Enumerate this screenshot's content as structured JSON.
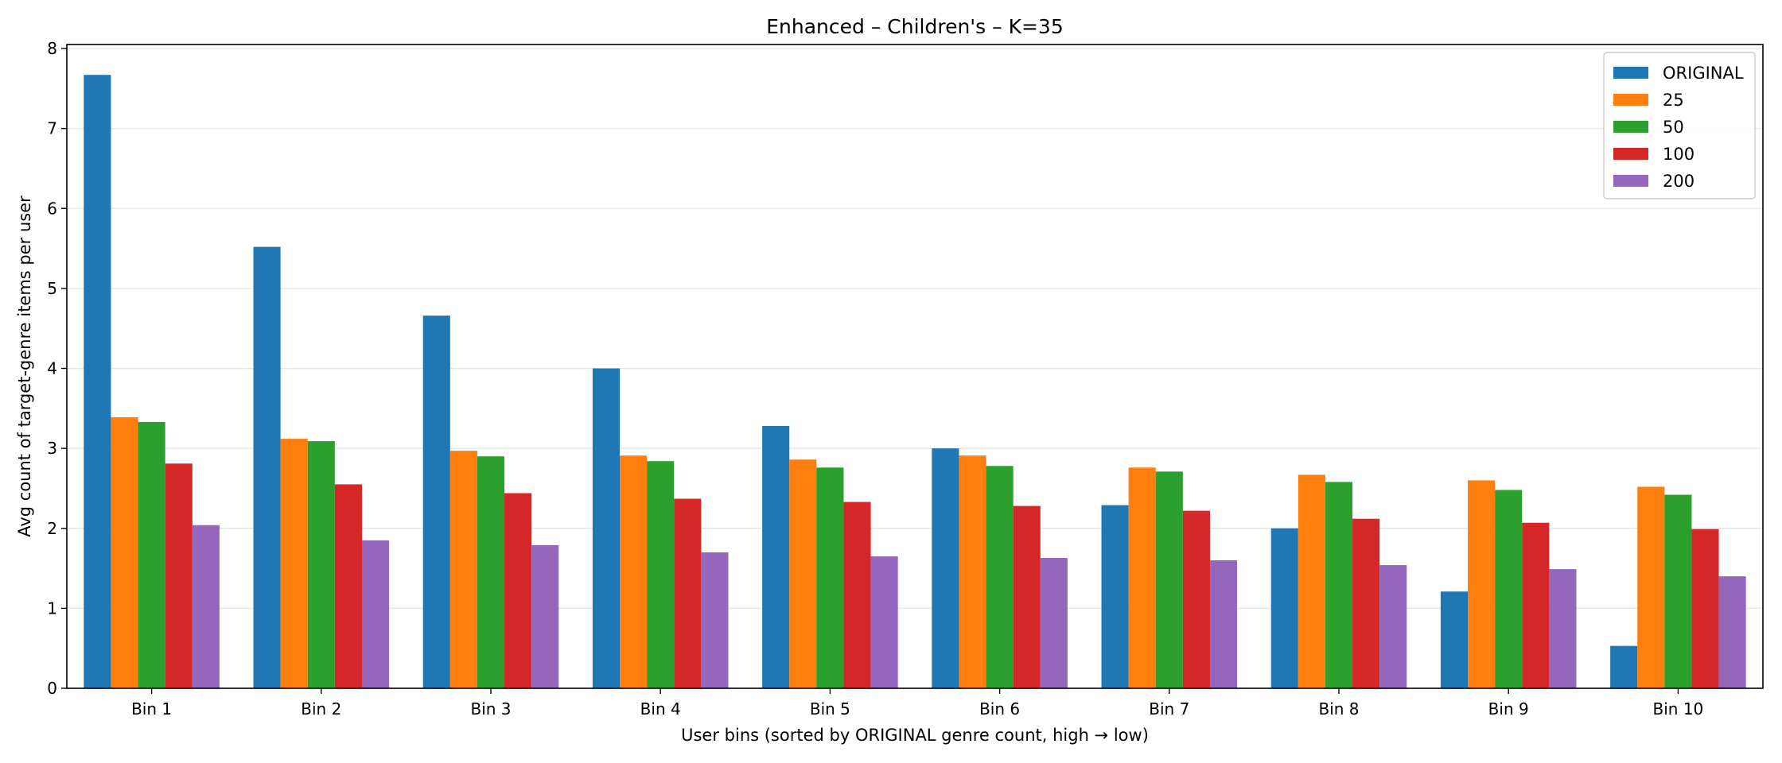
{
  "chart_data": {
    "type": "bar",
    "title": "Enhanced – Children's – K=35",
    "xlabel": "User bins (sorted by ORIGINAL genre count, high → low)",
    "ylabel": "Avg count of target-genre items per user",
    "ylim": [
      0,
      8.05
    ],
    "yticks": [
      0,
      1,
      2,
      3,
      4,
      5,
      6,
      7,
      8
    ],
    "grid": "horizontal-light",
    "legend_position": "top-right",
    "categories": [
      "Bin 1",
      "Bin 2",
      "Bin 3",
      "Bin 4",
      "Bin 5",
      "Bin 6",
      "Bin 7",
      "Bin 8",
      "Bin 9",
      "Bin 10"
    ],
    "series": [
      {
        "name": "ORIGINAL",
        "color": "#1f77b4",
        "values": [
          7.67,
          5.52,
          4.66,
          4.0,
          3.28,
          3.0,
          2.29,
          2.0,
          1.21,
          0.53
        ]
      },
      {
        "name": "25",
        "color": "#ff7f0e",
        "values": [
          3.39,
          3.12,
          2.97,
          2.91,
          2.86,
          2.91,
          2.76,
          2.67,
          2.6,
          2.52
        ]
      },
      {
        "name": "50",
        "color": "#2ca02c",
        "values": [
          3.33,
          3.09,
          2.9,
          2.84,
          2.76,
          2.78,
          2.71,
          2.58,
          2.48,
          2.42
        ]
      },
      {
        "name": "100",
        "color": "#d62728",
        "values": [
          2.81,
          2.55,
          2.44,
          2.37,
          2.33,
          2.28,
          2.22,
          2.12,
          2.07,
          1.99
        ]
      },
      {
        "name": "200",
        "color": "#9467bd",
        "values": [
          2.04,
          1.85,
          1.79,
          1.7,
          1.65,
          1.63,
          1.6,
          1.54,
          1.49,
          1.4
        ]
      }
    ]
  }
}
